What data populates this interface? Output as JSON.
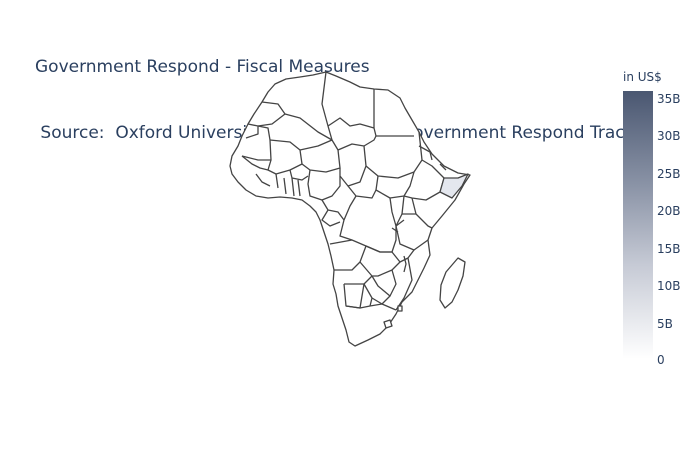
{
  "title": {
    "line1": "Government Respond - Fiscal Measures",
    "line2": " Source:  Oxford University CORONAVIRUS Government Respond Tracker"
  },
  "map": {
    "region": "Africa",
    "highlighted_country": "Somalia",
    "border_color": "#444444",
    "land_color": "#ffffff",
    "highlight_color": "#e4e7ee"
  },
  "colorbar": {
    "title": "in US$",
    "ticks": [
      "35B",
      "30B",
      "25B",
      "20B",
      "15B",
      "10B",
      "5B",
      "0"
    ],
    "color_max": "#4a5771",
    "color_min": "#ffffff"
  }
}
